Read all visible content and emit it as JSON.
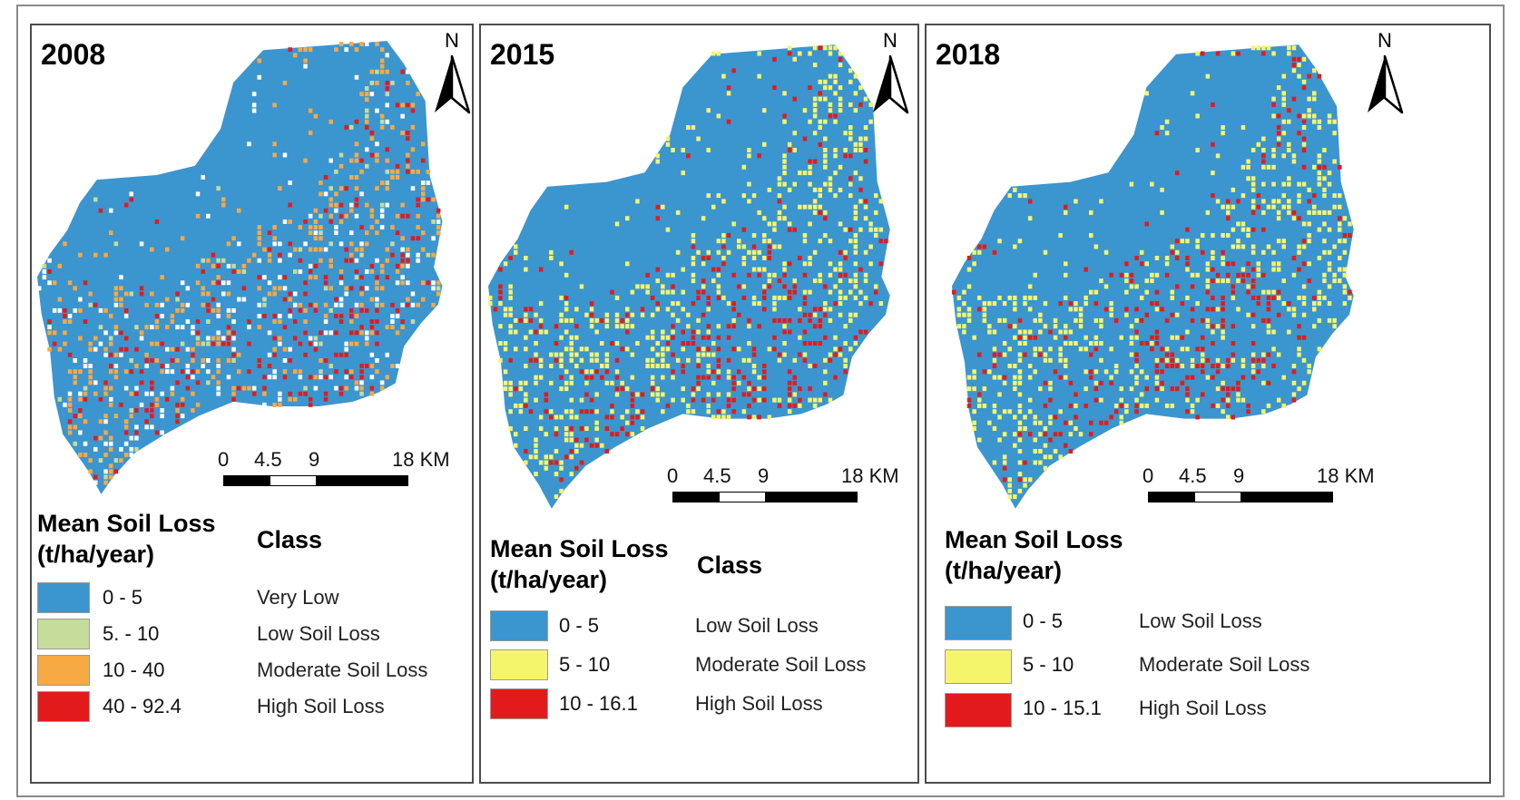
{
  "panels": [
    {
      "year": "2008",
      "north": "N",
      "scale": {
        "ticks": [
          "0",
          "4.5",
          "9",
          "18 KM"
        ]
      },
      "legend": {
        "title_line1": "Mean Soil Loss",
        "title_line2": "(t/ha/year)",
        "class_header": "Class",
        "items": [
          {
            "range": "0 - 5",
            "class": "Very Low",
            "color": "#3b95cf"
          },
          {
            "range": "5. - 10",
            "class": "Low Soil Loss",
            "color": "#c6dc9a"
          },
          {
            "range": "10 - 40",
            "class": "Moderate Soil Loss",
            "color": "#f7a944"
          },
          {
            "range": "40 - 92.4",
            "class": "High Soil Loss",
            "color": "#e31a1c"
          }
        ]
      }
    },
    {
      "year": "2015",
      "north": "N",
      "scale": {
        "ticks": [
          "0",
          "4.5",
          "9",
          "18 KM"
        ]
      },
      "legend": {
        "title_line1": "Mean Soil Loss",
        "title_line2": "(t/ha/year)",
        "class_header": "Class",
        "items": [
          {
            "range": "0 - 5",
            "class": "Low Soil Loss",
            "color": "#3b95cf"
          },
          {
            "range": "5 - 10",
            "class": "Moderate Soil Loss",
            "color": "#f5f56b"
          },
          {
            "range": "10 - 16.1",
            "class": "High Soil Loss",
            "color": "#e31a1c"
          }
        ]
      }
    },
    {
      "year": "2018",
      "north": "N",
      "scale": {
        "ticks": [
          "0",
          "4.5",
          "9",
          "18 KM"
        ]
      },
      "legend": {
        "title_line1": "Mean Soil Loss",
        "title_line2": "(t/ha/year)",
        "class_header": "",
        "items": [
          {
            "range": "0 - 5",
            "class": "Low Soil Loss",
            "color": "#3b95cf"
          },
          {
            "range": "5 - 10",
            "class": "Moderate Soil Loss",
            "color": "#f5f56b"
          },
          {
            "range": "10 - 15.1",
            "class": "High Soil Loss",
            "color": "#e31a1c"
          }
        ]
      }
    }
  ]
}
